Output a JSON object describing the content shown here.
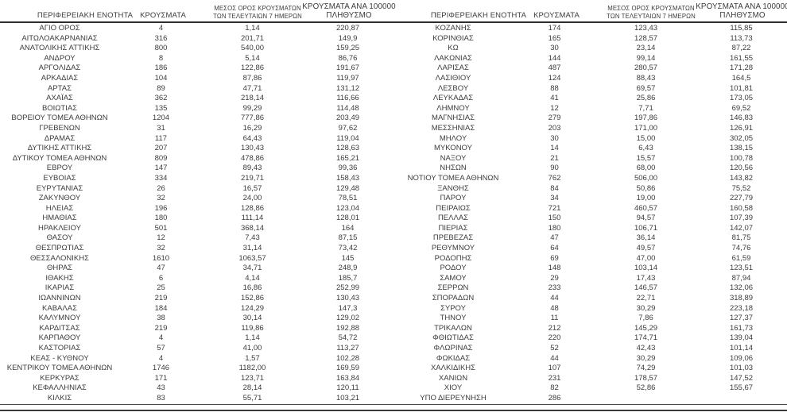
{
  "table_headers": {
    "region": "ΠΕΡΙΦΕΡΕΙΑΚΗ ΕΝΟΤΗΤΑ",
    "cases": "ΚΡΟΥΣΜΑΤΑ",
    "avg_line1": "ΜΕΣΟΣ ΟΡΟΣ ΚΡΟΥΣΜΑΤΩΝ",
    "avg_line2": "ΤΩΝ ΤΕΛΕΥΤΑΙΩΝ 7 ΗΜΕΡΩΝ",
    "per100k_line1": "ΚΡΟΥΣΜΑΤΑ ΑΝΑ 100000",
    "per100k_line2": "ΠΛΗΘΥΣΜΟ"
  },
  "left_table": {
    "rows": [
      [
        "ΑΓΙΟ ΟΡΟΣ",
        "4",
        "1,14",
        "220,87"
      ],
      [
        "ΑΙΤΩΛΟΑΚΑΡΝΑΝΙΑΣ",
        "316",
        "201,71",
        "149,9"
      ],
      [
        "ΑΝΑΤΟΛΙΚΗΣ ΑΤΤΙΚΗΣ",
        "800",
        "540,00",
        "159,25"
      ],
      [
        "ΑΝΔΡΟΥ",
        "8",
        "5,14",
        "86,76"
      ],
      [
        "ΑΡΓΟΛΙΔΑΣ",
        "186",
        "122,86",
        "191,67"
      ],
      [
        "ΑΡΚΑΔΙΑΣ",
        "104",
        "87,86",
        "119,97"
      ],
      [
        "ΑΡΤΑΣ",
        "89",
        "47,71",
        "131,12"
      ],
      [
        "ΑΧΑΪΑΣ",
        "362",
        "218,14",
        "116,66"
      ],
      [
        "ΒΟΙΩΤΙΑΣ",
        "135",
        "99,29",
        "114,48"
      ],
      [
        "ΒΟΡΕΙΟΥ ΤΟΜΕΑ ΑΘΗΝΩΝ",
        "1204",
        "777,86",
        "203,49"
      ],
      [
        "ΓΡΕΒΕΝΩΝ",
        "31",
        "16,29",
        "97,62"
      ],
      [
        "ΔΡΑΜΑΣ",
        "117",
        "64,43",
        "119,04"
      ],
      [
        "ΔΥΤΙΚΗΣ ΑΤΤΙΚΗΣ",
        "207",
        "130,43",
        "128,63"
      ],
      [
        "ΔΥΤΙΚΟΥ ΤΟΜΕΑ ΑΘΗΝΩΝ",
        "809",
        "478,86",
        "165,21"
      ],
      [
        "ΕΒΡΟΥ",
        "147",
        "89,43",
        "99,36"
      ],
      [
        "ΕΥΒΟΙΑΣ",
        "334",
        "219,71",
        "158,43"
      ],
      [
        "ΕΥΡΥΤΑΝΙΑΣ",
        "26",
        "16,57",
        "129,48"
      ],
      [
        "ΖΑΚΥΝΘΟΥ",
        "32",
        "24,00",
        "78,51"
      ],
      [
        "ΗΛΕΙΑΣ",
        "196",
        "128,86",
        "123,04"
      ],
      [
        "ΗΜΑΘΙΑΣ",
        "180",
        "111,14",
        "128,01"
      ],
      [
        "ΗΡΑΚΛΕΙΟΥ",
        "501",
        "368,14",
        "164"
      ],
      [
        "ΘΑΣΟΥ",
        "12",
        "7,43",
        "87,15"
      ],
      [
        "ΘΕΣΠΡΩΤΙΑΣ",
        "32",
        "31,14",
        "73,42"
      ],
      [
        "ΘΕΣΣΑΛΟΝΙΚΗΣ",
        "1610",
        "1063,57",
        "145"
      ],
      [
        "ΘΗΡΑΣ",
        "47",
        "34,71",
        "248,9"
      ],
      [
        "ΙΘΑΚΗΣ",
        "6",
        "4,14",
        "185,7"
      ],
      [
        "ΙΚΑΡΙΑΣ",
        "25",
        "16,86",
        "252,99"
      ],
      [
        "ΙΩΑΝΝΙΝΩΝ",
        "219",
        "152,86",
        "130,43"
      ],
      [
        "ΚΑΒΑΛΑΣ",
        "184",
        "124,29",
        "147,3"
      ],
      [
        "ΚΑΛΥΜΝΟΥ",
        "38",
        "30,14",
        "129,02"
      ],
      [
        "ΚΑΡΔΙΤΣΑΣ",
        "219",
        "119,86",
        "192,88"
      ],
      [
        "ΚΑΡΠΑΘΟΥ",
        "4",
        "1,14",
        "54,72"
      ],
      [
        "ΚΑΣΤΟΡΙΑΣ",
        "57",
        "41,00",
        "113,27"
      ],
      [
        "ΚΕΑΣ - ΚΥΘΝΟΥ",
        "4",
        "1,57",
        "102,28"
      ],
      [
        "ΚΕΝΤΡΙΚΟΥ ΤΟΜΕΑ ΑΘΗΝΩΝ",
        "1746",
        "1182,00",
        "169,59"
      ],
      [
        "ΚΕΡΚΥΡΑΣ",
        "171",
        "123,71",
        "163,84"
      ],
      [
        "ΚΕΦΑΛΛΗΝΙΑΣ",
        "43",
        "28,14",
        "120,11"
      ],
      [
        "ΚΙΛΚΙΣ",
        "83",
        "55,71",
        "103,21"
      ]
    ]
  },
  "right_table": {
    "rows": [
      [
        "ΚΟΖΑΝΗΣ",
        "174",
        "123,43",
        "115,85"
      ],
      [
        "ΚΟΡΙΝΘΙΑΣ",
        "165",
        "128,57",
        "113,73"
      ],
      [
        "ΚΩ",
        "30",
        "23,14",
        "87,22"
      ],
      [
        "ΛΑΚΩΝΙΑΣ",
        "144",
        "99,14",
        "161,55"
      ],
      [
        "ΛΑΡΙΣΑΣ",
        "487",
        "280,57",
        "171,28"
      ],
      [
        "ΛΑΣΙΘΙΟΥ",
        "124",
        "88,43",
        "164,5"
      ],
      [
        "ΛΕΣΒΟΥ",
        "88",
        "69,57",
        "101,81"
      ],
      [
        "ΛΕΥΚΑΔΑΣ",
        "41",
        "25,86",
        "173,05"
      ],
      [
        "ΛΗΜΝΟΥ",
        "12",
        "7,71",
        "69,52"
      ],
      [
        "ΜΑΓΝΗΣΙΑΣ",
        "279",
        "197,86",
        "146,83"
      ],
      [
        "ΜΕΣΣΗΝΙΑΣ",
        "203",
        "171,00",
        "126,91"
      ],
      [
        "ΜΗΛΟΥ",
        "30",
        "15,00",
        "302,05"
      ],
      [
        "ΜΥΚΟΝΟΥ",
        "14",
        "6,43",
        "138,15"
      ],
      [
        "ΝΑΞΟΥ",
        "21",
        "15,57",
        "100,78"
      ],
      [
        "ΝΗΣΩΝ",
        "90",
        "68,00",
        "120,56"
      ],
      [
        "ΝΟΤΙΟΥ ΤΟΜΕΑ ΑΘΗΝΩΝ",
        "762",
        "506,00",
        "143,82"
      ],
      [
        "ΞΑΝΘΗΣ",
        "84",
        "50,86",
        "75,52"
      ],
      [
        "ΠΑΡΟΥ",
        "34",
        "19,00",
        "227,79"
      ],
      [
        "ΠΕΙΡΑΙΩΣ",
        "721",
        "460,57",
        "160,58"
      ],
      [
        "ΠΕΛΛΑΣ",
        "150",
        "94,57",
        "107,39"
      ],
      [
        "ΠΙΕΡΙΑΣ",
        "180",
        "106,71",
        "142,07"
      ],
      [
        "ΠΡΕΒΕΖΑΣ",
        "47",
        "36,14",
        "81,75"
      ],
      [
        "ΡΕΘΥΜΝΟΥ",
        "64",
        "49,57",
        "74,76"
      ],
      [
        "ΡΟΔΟΠΗΣ",
        "69",
        "47,00",
        "61,59"
      ],
      [
        "ΡΟΔΟΥ",
        "148",
        "103,14",
        "123,51"
      ],
      [
        "ΣΑΜΟΥ",
        "29",
        "17,43",
        "87,94"
      ],
      [
        "ΣΕΡΡΩΝ",
        "233",
        "146,57",
        "132,06"
      ],
      [
        "ΣΠΟΡΑΔΩΝ",
        "44",
        "22,71",
        "318,89"
      ],
      [
        "ΣΥΡΟΥ",
        "48",
        "30,29",
        "223,18"
      ],
      [
        "ΤΗΝΟΥ",
        "11",
        "7,86",
        "127,37"
      ],
      [
        "ΤΡΙΚΑΛΩΝ",
        "212",
        "145,29",
        "161,73"
      ],
      [
        "ΦΘΙΩΤΙΔΑΣ",
        "220",
        "174,71",
        "139,04"
      ],
      [
        "ΦΛΩΡΙΝΑΣ",
        "52",
        "42,43",
        "101,14"
      ],
      [
        "ΦΩΚΙΔΑΣ",
        "44",
        "30,29",
        "109,06"
      ],
      [
        "ΧΑΛΚΙΔΙΚΗΣ",
        "107",
        "74,29",
        "101,03"
      ],
      [
        "ΧΑΝΙΩΝ",
        "231",
        "178,57",
        "147,52"
      ],
      [
        "ΧΙΟΥ",
        "82",
        "52,86",
        "155,67"
      ],
      [
        "ΥΠΟ ΔΙΕΡΕΥΝΗΣΗ",
        "286",
        "",
        ""
      ]
    ]
  },
  "colors": {
    "text": "#3c3c3c",
    "rule_dark": "#2e2e2e",
    "background": "#ffffff"
  }
}
